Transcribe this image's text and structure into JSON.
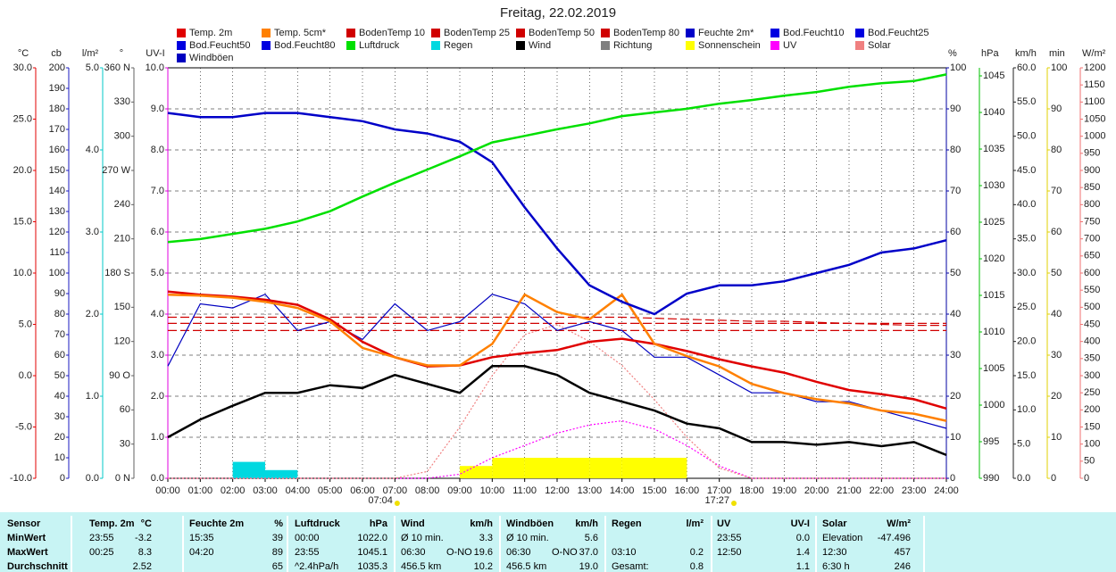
{
  "chart_data": {
    "type": "line",
    "title": "Freitag, 22.02.2019",
    "x": [
      0,
      1,
      2,
      3,
      4,
      5,
      6,
      7,
      8,
      9,
      10,
      11,
      12,
      13,
      14,
      15,
      16,
      17,
      18,
      19,
      20,
      21,
      22,
      23,
      24
    ],
    "xlim": [
      0,
      24
    ],
    "xticks": [
      {
        "value": 0,
        "label": "00:00"
      },
      {
        "value": 1,
        "label": "01:00"
      },
      {
        "value": 2,
        "label": "02:00"
      },
      {
        "value": 3,
        "label": "03:00"
      },
      {
        "value": 4,
        "label": "04:00"
      },
      {
        "value": 5,
        "label": "05:00"
      },
      {
        "value": 6,
        "label": "06:00"
      },
      {
        "value": 7,
        "label": "07:00"
      },
      {
        "value": 8,
        "label": "08:00"
      },
      {
        "value": 9,
        "label": "09:00"
      },
      {
        "value": 10,
        "label": "10:00"
      },
      {
        "value": 11,
        "label": "11:00"
      },
      {
        "value": 12,
        "label": "12:00"
      },
      {
        "value": 13,
        "label": "13:00"
      },
      {
        "value": 14,
        "label": "14:00"
      },
      {
        "value": 15,
        "label": "15:00"
      },
      {
        "value": 16,
        "label": "16:00"
      },
      {
        "value": 17,
        "label": "17:00"
      },
      {
        "value": 18,
        "label": "18:00"
      },
      {
        "value": 19,
        "label": "19:00"
      },
      {
        "value": 20,
        "label": "20:00"
      },
      {
        "value": 21,
        "label": "21:00"
      },
      {
        "value": 22,
        "label": "22:00"
      },
      {
        "value": 23,
        "label": "23:00"
      },
      {
        "value": 24,
        "label": "24:00"
      }
    ],
    "grid": true,
    "annotations": [
      {
        "text": "07:04",
        "x": 7.07
      },
      {
        "text": "17:27",
        "x": 17.45
      }
    ],
    "axes": [
      {
        "label": "°C",
        "side": "left",
        "color": "#e00000",
        "lim": [
          -10,
          30
        ],
        "ticks": [
          {
            "value": -10,
            "label": "-10.0"
          },
          {
            "value": -5,
            "label": "-5.0"
          },
          {
            "value": 0,
            "label": "0.0"
          },
          {
            "value": 5,
            "label": "5.0"
          },
          {
            "value": 10,
            "label": "10.0"
          },
          {
            "value": 15,
            "label": "15.0"
          },
          {
            "value": 20,
            "label": "20.0"
          },
          {
            "value": 25,
            "label": "25.0"
          },
          {
            "value": 30,
            "label": "30.0"
          }
        ]
      },
      {
        "label": "cb",
        "side": "left",
        "color": "#1818c0",
        "lim": [
          0,
          200
        ],
        "ticks": [
          0,
          10,
          20,
          30,
          40,
          50,
          60,
          70,
          80,
          90,
          100,
          110,
          120,
          130,
          140,
          150,
          160,
          170,
          180,
          190,
          200
        ]
      },
      {
        "label": "l/m²",
        "side": "left",
        "color": "#00c8c8",
        "lim": [
          0,
          5
        ],
        "ticks": [
          {
            "value": 0,
            "label": "0.0"
          },
          {
            "value": 1,
            "label": "1.0"
          },
          {
            "value": 2,
            "label": "2.0"
          },
          {
            "value": 3,
            "label": "3.0"
          },
          {
            "value": 4,
            "label": "4.0"
          },
          {
            "value": 5,
            "label": "5.0"
          }
        ]
      },
      {
        "label": "°",
        "side": "left",
        "color": "#606060",
        "lim": [
          0,
          360
        ],
        "ticks": [
          {
            "value": 0,
            "label": "0 N"
          },
          30,
          60,
          {
            "value": 90,
            "label": "90 O"
          },
          120,
          150,
          {
            "value": 180,
            "label": "180 S"
          },
          210,
          240,
          {
            "value": 270,
            "label": "270 W"
          },
          300,
          330,
          {
            "value": 360,
            "label": "360 N"
          }
        ]
      },
      {
        "label": "UV-I",
        "side": "left",
        "color": "#e000e0",
        "lim": [
          0,
          10
        ],
        "ticks": [
          {
            "value": 0,
            "label": "0.0"
          },
          {
            "value": 1,
            "label": "1.0"
          },
          {
            "value": 2,
            "label": "2.0"
          },
          {
            "value": 3,
            "label": "3.0"
          },
          {
            "value": 4,
            "label": "4.0"
          },
          {
            "value": 5,
            "label": "5.0"
          },
          {
            "value": 6,
            "label": "6.0"
          },
          {
            "value": 7,
            "label": "7.0"
          },
          {
            "value": 8,
            "label": "8.0"
          },
          {
            "value": 9,
            "label": "9.0"
          },
          {
            "value": 10,
            "label": "10.0"
          }
        ]
      },
      {
        "label": "%",
        "side": "right",
        "color": "#0000a0",
        "lim": [
          0,
          100
        ],
        "ticks": [
          0,
          10,
          20,
          30,
          40,
          50,
          60,
          70,
          80,
          90,
          100
        ]
      },
      {
        "label": "hPa",
        "side": "right",
        "color": "#00c000",
        "lim": [
          990,
          1046.1
        ],
        "ticks": [
          990,
          995,
          1000,
          1005,
          1010,
          1015,
          1020,
          1025,
          1030,
          1035,
          1040,
          1045
        ]
      },
      {
        "label": "km/h",
        "side": "right",
        "color": "#202020",
        "lim": [
          0,
          60
        ],
        "ticks": [
          {
            "value": 0,
            "label": "0.0"
          },
          {
            "value": 5,
            "label": "5.0"
          },
          {
            "value": 10,
            "label": "10.0"
          },
          {
            "value": 15,
            "label": "15.0"
          },
          {
            "value": 20,
            "label": "20.0"
          },
          {
            "value": 25,
            "label": "25.0"
          },
          {
            "value": 30,
            "label": "30.0"
          },
          {
            "value": 35,
            "label": "35.0"
          },
          {
            "value": 40,
            "label": "40.0"
          },
          {
            "value": 45,
            "label": "45.0"
          },
          {
            "value": 50,
            "label": "50.0"
          },
          {
            "value": 55,
            "label": "55.0"
          },
          {
            "value": 60,
            "label": "60.0"
          }
        ]
      },
      {
        "label": "min",
        "side": "right",
        "color": "#e0d000",
        "lim": [
          0,
          100
        ],
        "ticks": [
          0,
          10,
          20,
          30,
          40,
          50,
          60,
          70,
          80,
          90,
          100
        ]
      },
      {
        "label": "W/m²",
        "side": "right",
        "color": "#f07070",
        "lim": [
          0,
          1200
        ],
        "ticks": [
          0,
          50,
          100,
          150,
          200,
          250,
          300,
          350,
          400,
          450,
          500,
          550,
          600,
          650,
          700,
          750,
          800,
          850,
          900,
          950,
          1000,
          1050,
          1100,
          1150,
          1200
        ]
      }
    ],
    "series": [
      {
        "name": "Temp. 2m",
        "color": "#e00000",
        "axis": 0,
        "style": "line",
        "values": [
          8.2,
          7.9,
          7.7,
          7.4,
          6.9,
          5.5,
          3.3,
          1.8,
          0.9,
          1.0,
          1.8,
          2.2,
          2.5,
          3.3,
          3.6,
          3.1,
          2.4,
          1.6,
          0.9,
          0.3,
          -0.6,
          -1.4,
          -1.8,
          -2.3,
          -3.2
        ]
      },
      {
        "name": "Temp. 5cm*",
        "color": "#ff8000",
        "axis": 0,
        "style": "line",
        "values": [
          7.9,
          7.8,
          7.6,
          7.2,
          6.6,
          5.3,
          2.7,
          1.8,
          1.0,
          1.0,
          3.1,
          7.9,
          6.2,
          5.5,
          7.9,
          3.1,
          1.9,
          0.9,
          -0.8,
          -1.7,
          -2.3,
          -2.7,
          -3.4,
          -3.7,
          -4.4
        ]
      },
      {
        "name": "BodenTemp 10",
        "color": "#d00000",
        "axis": 0,
        "style": "dashed",
        "values": [
          5.7,
          5.7,
          5.7,
          5.7,
          5.7,
          5.7,
          5.7,
          5.7,
          5.7,
          5.7,
          5.7,
          5.7,
          5.7,
          5.7,
          5.7,
          5.6,
          5.5,
          5.4,
          5.3,
          5.3,
          5.2,
          5.1,
          5.0,
          4.9,
          4.9
        ]
      },
      {
        "name": "BodenTemp 25",
        "color": "#d00000",
        "axis": 0,
        "style": "dashed",
        "values": [
          5.1,
          5.1,
          5.1,
          5.1,
          5.1,
          5.1,
          5.1,
          5.1,
          5.1,
          5.1,
          5.1,
          5.1,
          5.1,
          5.1,
          5.1,
          5.1,
          5.1,
          5.1,
          5.1,
          5.1,
          5.1,
          5.1,
          5.1,
          5.1,
          5.1
        ]
      },
      {
        "name": "BodenTemp 50",
        "color": "#d00000",
        "axis": 0,
        "style": "dashed",
        "values": [
          4.4,
          4.4,
          4.4,
          4.4,
          4.4,
          4.4,
          4.4,
          4.4,
          4.4,
          4.4,
          4.4,
          4.4,
          4.4,
          4.4,
          4.4,
          4.4,
          4.4,
          4.4,
          4.4,
          4.4,
          4.4,
          4.4,
          4.4,
          4.4,
          4.4
        ]
      },
      {
        "name": "BodenTemp 80",
        "color": "#d00000",
        "axis": 0,
        "style": "dashed"
      },
      {
        "name": "Feuchte 2m*",
        "color": "#0000c8",
        "axis": 5,
        "style": "line",
        "values": [
          89,
          88,
          88,
          89,
          89,
          88,
          87,
          85,
          84,
          82,
          77,
          66,
          56,
          47,
          43,
          40,
          45,
          47,
          47,
          48,
          50,
          52,
          55,
          56,
          58
        ]
      },
      {
        "name": "Bod.Feucht10",
        "color": "#0000e0",
        "axis": 1,
        "style": "line"
      },
      {
        "name": "Bod.Feucht25",
        "color": "#0000e0",
        "axis": 1,
        "style": "line"
      },
      {
        "name": "Bod.Feucht50",
        "color": "#0000e0",
        "axis": 1,
        "style": "line"
      },
      {
        "name": "Bod.Feucht80",
        "color": "#0000e0",
        "axis": 1,
        "style": "line"
      },
      {
        "name": "Luftdruck",
        "color": "#00e000",
        "axis": 6,
        "style": "line",
        "values": [
          1022.3,
          1022.7,
          1023.4,
          1024.1,
          1025.1,
          1026.5,
          1028.5,
          1030.4,
          1032.2,
          1034.0,
          1035.9,
          1036.8,
          1037.7,
          1038.5,
          1039.5,
          1040.0,
          1040.5,
          1041.2,
          1041.7,
          1042.3,
          1042.8,
          1043.5,
          1044.0,
          1044.3,
          1045.2
        ]
      },
      {
        "name": "Regen",
        "color": "#00d8e0",
        "axis": 2,
        "style": "bar",
        "values": [
          0,
          0,
          0.2,
          0.1,
          0,
          0,
          0,
          0,
          0,
          0,
          0,
          0,
          0,
          0,
          0,
          0,
          0,
          0,
          0,
          0,
          0,
          0,
          0,
          0,
          0
        ]
      },
      {
        "name": "Wind",
        "color": "#000000",
        "axis": 7,
        "style": "line",
        "values": [
          6.0,
          8.6,
          10.6,
          12.5,
          12.5,
          13.6,
          13.2,
          15.1,
          13.8,
          12.5,
          16.4,
          16.4,
          15.1,
          12.5,
          11.2,
          9.9,
          8.0,
          7.3,
          5.3,
          5.3,
          4.9,
          5.3,
          4.7,
          5.3,
          3.4
        ]
      },
      {
        "name": "Richtung",
        "color": "#808080",
        "axis": 3,
        "style": "dots"
      },
      {
        "name": "Sonnenschein",
        "color": "#ffff00",
        "axis": 8,
        "style": "bar",
        "values": [
          0,
          0,
          0,
          0,
          0,
          0,
          0,
          0,
          0,
          3,
          5,
          5,
          5,
          5,
          5,
          5,
          0,
          0,
          0,
          0,
          0,
          0,
          0,
          0,
          0
        ]
      },
      {
        "name": "UV",
        "color": "#ff00ff",
        "axis": 4,
        "style": "dotted",
        "values": [
          0,
          0,
          0,
          0,
          0,
          0,
          0,
          0,
          0,
          0.1,
          0.5,
          0.8,
          1.1,
          1.3,
          1.4,
          1.2,
          0.8,
          0.3,
          0,
          0,
          0,
          0,
          0,
          0,
          0
        ]
      },
      {
        "name": "Solar",
        "color": "#f08080",
        "axis": 9,
        "style": "dotted",
        "values": [
          0,
          0,
          0,
          0,
          0,
          0,
          0,
          0,
          20,
          150,
          300,
          420,
          450,
          400,
          330,
          230,
          120,
          30,
          0,
          0,
          0,
          0,
          0,
          0,
          0
        ]
      },
      {
        "name": "Windböen",
        "color": "#0000c0",
        "axis": 7,
        "style": "thin",
        "values": [
          16.4,
          25.5,
          24.9,
          26.9,
          21.6,
          22.9,
          20.3,
          25.5,
          21.6,
          22.9,
          26.9,
          25.5,
          21.6,
          22.9,
          21.6,
          17.7,
          17.7,
          15.1,
          12.5,
          12.5,
          11.2,
          11.2,
          9.9,
          8.6,
          7.3
        ]
      }
    ]
  },
  "table": {
    "header": [
      "Sensor",
      "Temp. 2m",
      "°C",
      "Feuchte 2m",
      "%",
      "Luftdruck",
      "hPa",
      "Wind",
      null,
      "km/h",
      "Windböen",
      null,
      "km/h",
      "Regen",
      "l/m²",
      "UV",
      "UV-I",
      "Solar",
      "W/m²"
    ],
    "rows": [
      [
        "MinWert",
        "23:55",
        "-3.2",
        "15:35",
        "39",
        "00:00",
        "1022.0",
        "Ø 10 min.",
        null,
        "3.3",
        "Ø 10 min.",
        null,
        "5.6",
        null,
        null,
        "23:55",
        "0.0",
        "Elevation",
        "-47.496"
      ],
      [
        "MaxWert",
        "00:25",
        "8.3",
        "04:20",
        "89",
        "23:55",
        "1045.1",
        "06:30",
        "O-NO",
        "19.6",
        "06:30",
        "O-NO",
        "37.0",
        "03:10",
        "0.2",
        "12:50",
        "1.4",
        "12:30",
        "457"
      ],
      [
        "Durchschnitt",
        null,
        "2.52",
        null,
        "65",
        "^2.4hPa/h",
        "1035.3",
        "456.5 km",
        null,
        "10.2",
        "456.5 km",
        null,
        "19.0",
        "Gesamt:",
        "0.8",
        null,
        "1.1",
        "6:30 h",
        "246"
      ]
    ]
  }
}
